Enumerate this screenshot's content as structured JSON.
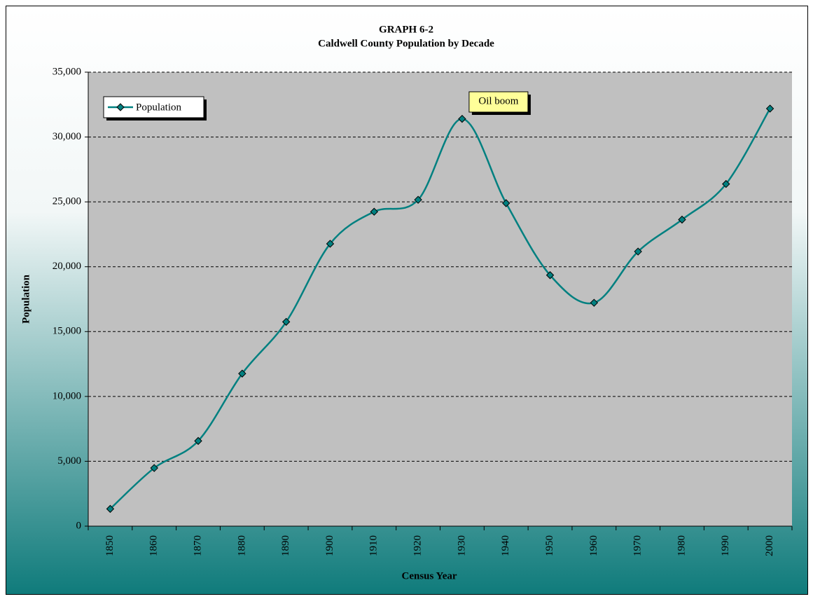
{
  "chart_data": {
    "type": "line",
    "title": "GRAPH 6-2",
    "subtitle": "Caldwell County Population by Decade",
    "x_label": "Census Year",
    "y_label": "Population",
    "categories": [
      "1850",
      "1860",
      "1870",
      "1880",
      "1890",
      "1900",
      "1910",
      "1920",
      "1930",
      "1940",
      "1950",
      "1960",
      "1970",
      "1980",
      "1990",
      "2000"
    ],
    "series": [
      {
        "name": "Population",
        "color": "#008080",
        "values": [
          1330,
          4480,
          6570,
          11760,
          15750,
          21770,
          24240,
          25160,
          31400,
          24900,
          19350,
          17220,
          21170,
          23630,
          26380,
          32190
        ]
      }
    ],
    "ylim": [
      0,
      35000
    ],
    "yticks": [
      0,
      {
        "value": 5000,
        "label": "5,000"
      },
      {
        "value": 10000,
        "label": "10,000"
      },
      {
        "value": 15000,
        "label": "15,000"
      },
      {
        "value": 20000,
        "label": "20,000"
      },
      {
        "value": 25000,
        "label": "25,000"
      },
      {
        "value": 30000,
        "label": "30,000"
      },
      {
        "value": 35000,
        "label": "35,000"
      }
    ],
    "grid": true,
    "legend": "top-left",
    "smooth": true,
    "annotations": [
      {
        "text": "Oil boom",
        "category": "1930"
      }
    ]
  }
}
